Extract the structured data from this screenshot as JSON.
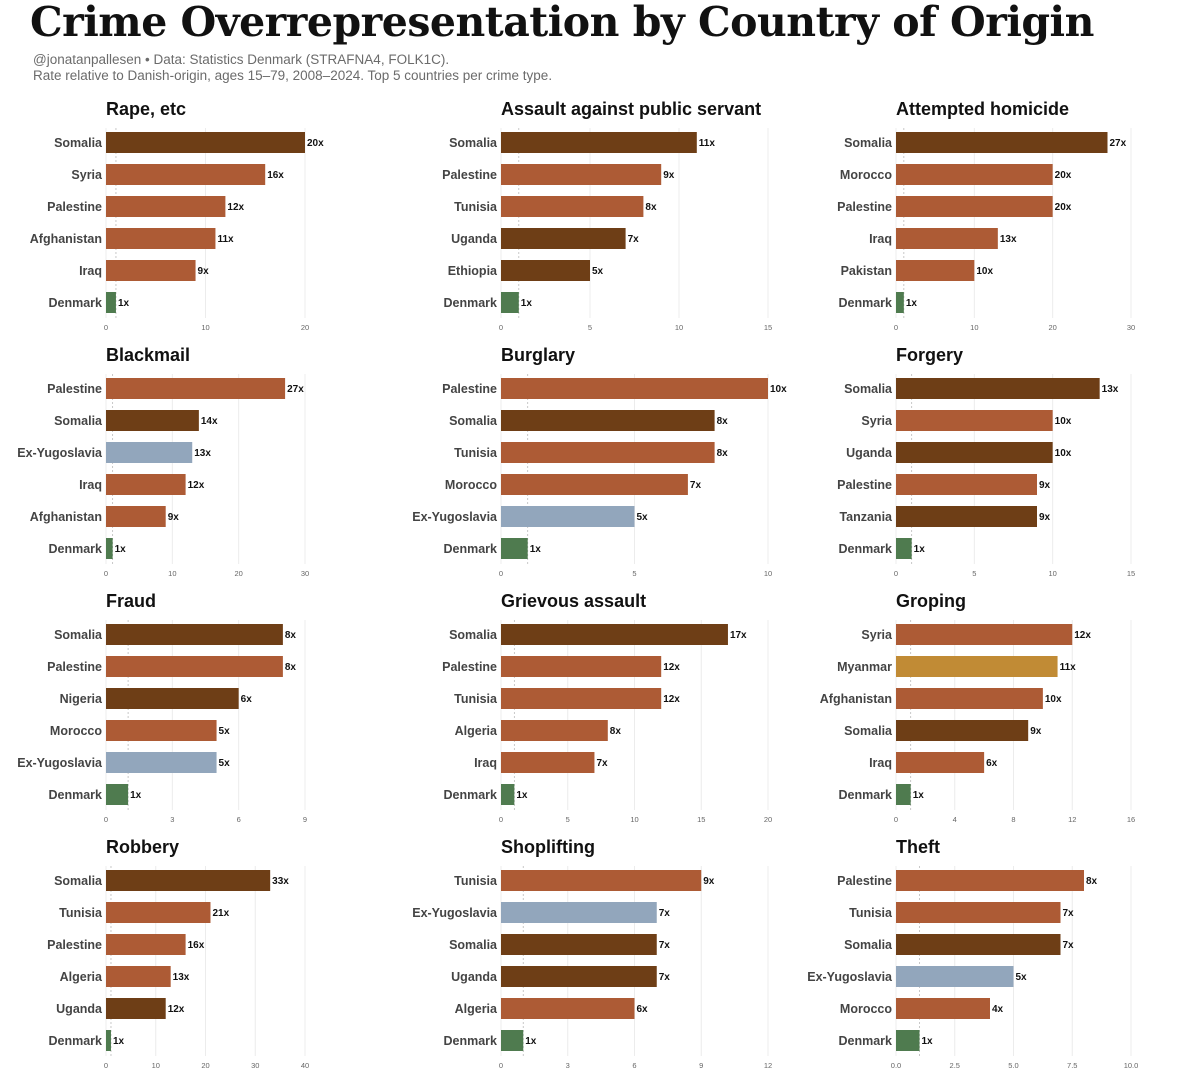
{
  "header": {
    "title": "Crime Overrepresentation by Country of Origin",
    "subtitle_line1": "@jonatanpallesen • Data: Statistics Denmark (STRAFNA4, FOLK1C).",
    "subtitle_line2": "Rate relative to Danish-origin, ages 15–79, 2008–2024. Top 5 countries per crime type."
  },
  "colors": {
    "mena": "#ad5b35",
    "africa": "#6e3e16",
    "balkan": "#92a6bc",
    "asia": "#c18b35",
    "denmark": "#4f7b4f",
    "grid": "#ececec",
    "reference": "#bbbbbb"
  },
  "chart_data": [
    {
      "type": "bar",
      "orientation": "horizontal",
      "title": "Rape, etc",
      "categories": [
        "Somalia",
        "Syria",
        "Palestine",
        "Afghanistan",
        "Iraq",
        "Denmark"
      ],
      "values": [
        20,
        16,
        12,
        11,
        9,
        1
      ],
      "labels": [
        "20x",
        "16x",
        "12x",
        "11x",
        "9x",
        "1x"
      ],
      "groups": [
        "africa",
        "mena",
        "mena",
        "mena",
        "mena",
        "denmark"
      ],
      "xlim": [
        0,
        20
      ],
      "xticks": [
        "0",
        "10",
        "20"
      ],
      "tick_values": [
        0,
        10,
        20
      ]
    },
    {
      "type": "bar",
      "orientation": "horizontal",
      "title": "Assault against public servant",
      "categories": [
        "Somalia",
        "Palestine",
        "Tunisia",
        "Uganda",
        "Ethiopia",
        "Denmark"
      ],
      "values": [
        11,
        9,
        8,
        7,
        5,
        1
      ],
      "labels": [
        "11x",
        "9x",
        "8x",
        "7x",
        "5x",
        "1x"
      ],
      "groups": [
        "africa",
        "mena",
        "mena",
        "africa",
        "africa",
        "denmark"
      ],
      "xlim": [
        0,
        15
      ],
      "xticks": [
        "0",
        "5",
        "10",
        "15"
      ],
      "tick_values": [
        0,
        5,
        10,
        15
      ]
    },
    {
      "type": "bar",
      "orientation": "horizontal",
      "title": "Attempted homicide",
      "categories": [
        "Somalia",
        "Morocco",
        "Palestine",
        "Iraq",
        "Pakistan",
        "Denmark"
      ],
      "values": [
        27,
        20,
        20,
        13,
        10,
        1
      ],
      "labels": [
        "27x",
        "20x",
        "20x",
        "13x",
        "10x",
        "1x"
      ],
      "groups": [
        "africa",
        "mena",
        "mena",
        "mena",
        "mena",
        "denmark"
      ],
      "xlim": [
        0,
        30
      ],
      "xticks": [
        "0",
        "10",
        "20",
        "30"
      ],
      "tick_values": [
        0,
        10,
        20,
        30
      ]
    },
    {
      "type": "bar",
      "orientation": "horizontal",
      "title": "Blackmail",
      "categories": [
        "Palestine",
        "Somalia",
        "Ex-Yugoslavia",
        "Iraq",
        "Afghanistan",
        "Denmark"
      ],
      "values": [
        27,
        14,
        13,
        12,
        9,
        1
      ],
      "labels": [
        "27x",
        "14x",
        "13x",
        "12x",
        "9x",
        "1x"
      ],
      "groups": [
        "mena",
        "africa",
        "balkan",
        "mena",
        "mena",
        "denmark"
      ],
      "xlim": [
        0,
        30
      ],
      "xticks": [
        "0",
        "10",
        "20",
        "30"
      ],
      "tick_values": [
        0,
        10,
        20,
        30
      ]
    },
    {
      "type": "bar",
      "orientation": "horizontal",
      "title": "Burglary",
      "categories": [
        "Palestine",
        "Somalia",
        "Tunisia",
        "Morocco",
        "Ex-Yugoslavia",
        "Denmark"
      ],
      "values": [
        10,
        8,
        8,
        7,
        5,
        1
      ],
      "labels": [
        "10x",
        "8x",
        "8x",
        "7x",
        "5x",
        "1x"
      ],
      "groups": [
        "mena",
        "africa",
        "mena",
        "mena",
        "balkan",
        "denmark"
      ],
      "xlim": [
        0,
        10
      ],
      "xticks": [
        "0",
        "5",
        "10"
      ],
      "tick_values": [
        0,
        5,
        10
      ]
    },
    {
      "type": "bar",
      "orientation": "horizontal",
      "title": "Forgery",
      "categories": [
        "Somalia",
        "Syria",
        "Uganda",
        "Palestine",
        "Tanzania",
        "Denmark"
      ],
      "values": [
        13,
        10,
        10,
        9,
        9,
        1
      ],
      "labels": [
        "13x",
        "10x",
        "10x",
        "9x",
        "9x",
        "1x"
      ],
      "groups": [
        "africa",
        "mena",
        "africa",
        "mena",
        "africa",
        "denmark"
      ],
      "xlim": [
        0,
        15
      ],
      "xticks": [
        "0",
        "5",
        "10",
        "15"
      ],
      "tick_values": [
        0,
        5,
        10,
        15
      ]
    },
    {
      "type": "bar",
      "orientation": "horizontal",
      "title": "Fraud",
      "categories": [
        "Somalia",
        "Palestine",
        "Nigeria",
        "Morocco",
        "Ex-Yugoslavia",
        "Denmark"
      ],
      "values": [
        8,
        8,
        6,
        5,
        5,
        1
      ],
      "labels": [
        "8x",
        "8x",
        "6x",
        "5x",
        "5x",
        "1x"
      ],
      "groups": [
        "africa",
        "mena",
        "africa",
        "mena",
        "balkan",
        "denmark"
      ],
      "xlim": [
        0,
        9
      ],
      "xticks": [
        "0",
        "3",
        "6",
        "9"
      ],
      "tick_values": [
        0,
        3,
        6,
        9
      ]
    },
    {
      "type": "bar",
      "orientation": "horizontal",
      "title": "Grievous assault",
      "categories": [
        "Somalia",
        "Palestine",
        "Tunisia",
        "Algeria",
        "Iraq",
        "Denmark"
      ],
      "values": [
        17,
        12,
        12,
        8,
        7,
        1
      ],
      "labels": [
        "17x",
        "12x",
        "12x",
        "8x",
        "7x",
        "1x"
      ],
      "groups": [
        "africa",
        "mena",
        "mena",
        "mena",
        "mena",
        "denmark"
      ],
      "xlim": [
        0,
        20
      ],
      "xticks": [
        "0",
        "5",
        "10",
        "15",
        "20"
      ],
      "tick_values": [
        0,
        5,
        10,
        15,
        20
      ]
    },
    {
      "type": "bar",
      "orientation": "horizontal",
      "title": "Groping",
      "categories": [
        "Syria",
        "Myanmar",
        "Afghanistan",
        "Somalia",
        "Iraq",
        "Denmark"
      ],
      "values": [
        12,
        11,
        10,
        9,
        6,
        1
      ],
      "labels": [
        "12x",
        "11x",
        "10x",
        "9x",
        "6x",
        "1x"
      ],
      "groups": [
        "mena",
        "asia",
        "mena",
        "africa",
        "mena",
        "denmark"
      ],
      "xlim": [
        0,
        16
      ],
      "xticks": [
        "0",
        "4",
        "8",
        "12",
        "16"
      ],
      "tick_values": [
        0,
        4,
        8,
        12,
        16
      ]
    },
    {
      "type": "bar",
      "orientation": "horizontal",
      "title": "Robbery",
      "categories": [
        "Somalia",
        "Tunisia",
        "Palestine",
        "Algeria",
        "Uganda",
        "Denmark"
      ],
      "values": [
        33,
        21,
        16,
        13,
        12,
        1
      ],
      "labels": [
        "33x",
        "21x",
        "16x",
        "13x",
        "12x",
        "1x"
      ],
      "groups": [
        "africa",
        "mena",
        "mena",
        "mena",
        "africa",
        "denmark"
      ],
      "xlim": [
        0,
        40
      ],
      "xticks": [
        "0",
        "10",
        "20",
        "30",
        "40"
      ],
      "tick_values": [
        0,
        10,
        20,
        30,
        40
      ]
    },
    {
      "type": "bar",
      "orientation": "horizontal",
      "title": "Shoplifting",
      "categories": [
        "Tunisia",
        "Ex-Yugoslavia",
        "Somalia",
        "Uganda",
        "Algeria",
        "Denmark"
      ],
      "values": [
        9,
        7,
        7,
        7,
        6,
        1
      ],
      "labels": [
        "9x",
        "7x",
        "7x",
        "7x",
        "6x",
        "1x"
      ],
      "groups": [
        "mena",
        "balkan",
        "africa",
        "africa",
        "mena",
        "denmark"
      ],
      "xlim": [
        0,
        12
      ],
      "xticks": [
        "0",
        "3",
        "6",
        "9",
        "12"
      ],
      "tick_values": [
        0,
        3,
        6,
        9,
        12
      ]
    },
    {
      "type": "bar",
      "orientation": "horizontal",
      "title": "Theft",
      "categories": [
        "Palestine",
        "Tunisia",
        "Somalia",
        "Ex-Yugoslavia",
        "Morocco",
        "Denmark"
      ],
      "values": [
        8,
        7,
        7,
        5,
        4,
        1
      ],
      "labels": [
        "8x",
        "7x",
        "7x",
        "5x",
        "4x",
        "1x"
      ],
      "groups": [
        "mena",
        "mena",
        "africa",
        "balkan",
        "mena",
        "denmark"
      ],
      "xlim": [
        0,
        10
      ],
      "xticks": [
        "0.0",
        "2.5",
        "5.0",
        "7.5",
        "10.0"
      ],
      "tick_values": [
        0,
        2.5,
        5,
        7.5,
        10
      ]
    }
  ]
}
